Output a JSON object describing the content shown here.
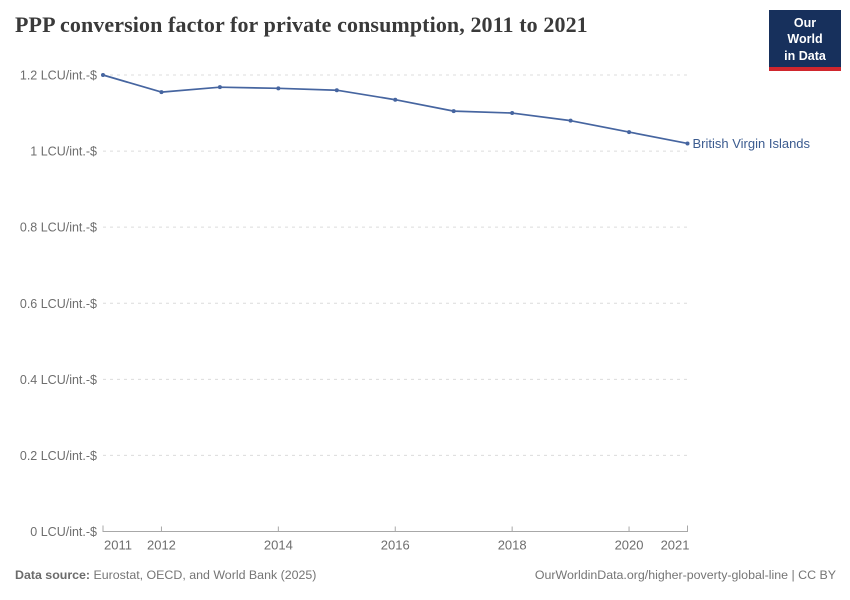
{
  "header": {
    "title": "PPP conversion factor for private consumption, 2011 to 2021",
    "logo_line1": "Our World",
    "logo_line2": "in Data"
  },
  "chart_data": {
    "type": "line",
    "title": "PPP conversion factor for private consumption, 2011 to 2021",
    "unit": "LCU/int.-$",
    "x": [
      2011,
      2012,
      2013,
      2014,
      2015,
      2016,
      2017,
      2018,
      2019,
      2020,
      2021
    ],
    "series": [
      {
        "name": "British Virgin Islands",
        "values": [
          1.2,
          1.155,
          1.168,
          1.165,
          1.16,
          1.135,
          1.105,
          1.1,
          1.08,
          1.05,
          1.02
        ]
      }
    ],
    "xlim": [
      2011,
      2021
    ],
    "ylim": [
      0,
      1.2
    ],
    "y_ticks": [
      {
        "value": 0,
        "label": "0 LCU/int.-$"
      },
      {
        "value": 0.2,
        "label": "0.2 LCU/int.-$"
      },
      {
        "value": 0.4,
        "label": "0.4 LCU/int.-$"
      },
      {
        "value": 0.6,
        "label": "0.6 LCU/int.-$"
      },
      {
        "value": 0.8,
        "label": "0.8 LCU/int.-$"
      },
      {
        "value": 1,
        "label": "1 LCU/int.-$"
      },
      {
        "value": 1.2,
        "label": "1.2 LCU/int.-$"
      }
    ],
    "x_ticks": [
      {
        "value": 2011,
        "label": "2011"
      },
      {
        "value": 2012,
        "label": "2012"
      },
      {
        "value": 2014,
        "label": "2014"
      },
      {
        "value": 2016,
        "label": "2016"
      },
      {
        "value": 2018,
        "label": "2018"
      },
      {
        "value": 2020,
        "label": "2020"
      },
      {
        "value": 2021,
        "label": "2021"
      }
    ],
    "grid": "horizontal-dashed",
    "legend_position": "end-of-line-label"
  },
  "colors": {
    "line": "#4665a0",
    "entity_label": "#3b5b8f",
    "grid": "#dcdcdc",
    "axis": "#a8a8a8",
    "tick_text": "#6e6e6e",
    "logo_bg": "#17305c",
    "logo_red": "#d0262d"
  },
  "footer": {
    "source_label": "Data source:",
    "source_text": " Eurostat, OECD, and World Bank (2025)",
    "right_text": "OurWorldinData.org/higher-poverty-global-line | CC BY"
  }
}
